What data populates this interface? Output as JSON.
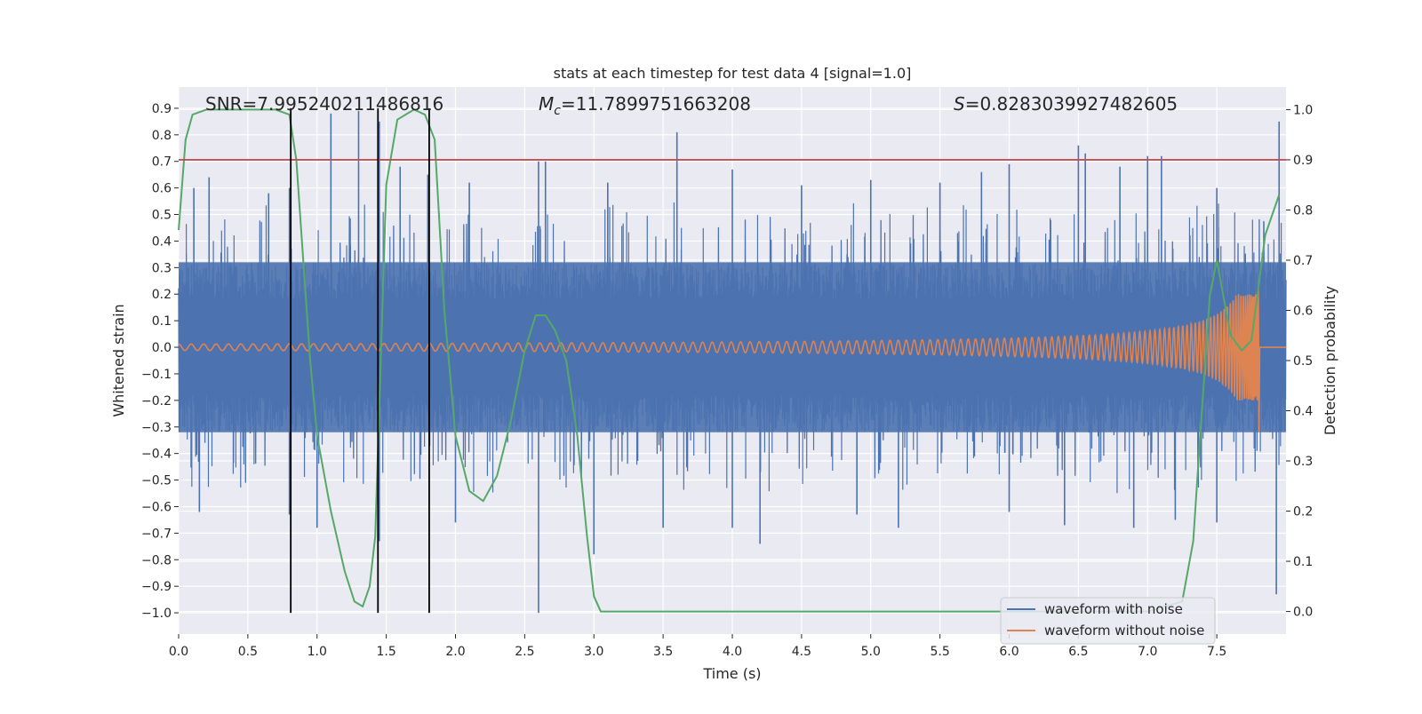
{
  "chart_data": {
    "type": "line",
    "title": "stats at each timestep for test data 4 [signal=1.0]",
    "xlabel": "Time (s)",
    "ylabel": "Whitened strain",
    "ylabel_right": "Detection probability",
    "xlim": [
      0.0,
      8.0
    ],
    "ylim": [
      -1.08,
      0.98
    ],
    "ylim_right": [
      -0.045,
      1.045
    ],
    "xticks": [
      0.0,
      0.5,
      1.0,
      1.5,
      2.0,
      2.5,
      3.0,
      3.5,
      4.0,
      4.5,
      5.0,
      5.5,
      6.0,
      6.5,
      7.0,
      7.5
    ],
    "xtick_labels": [
      "0.0",
      "0.5",
      "1.0",
      "1.5",
      "2.0",
      "2.5",
      "3.0",
      "3.5",
      "4.0",
      "4.5",
      "5.0",
      "5.5",
      "6.0",
      "6.5",
      "7.0",
      "7.5"
    ],
    "yticks": [
      -1.0,
      -0.9,
      -0.8,
      -0.7,
      -0.6,
      -0.5,
      -0.4,
      -0.3,
      -0.2,
      -0.1,
      0.0,
      0.1,
      0.2,
      0.3,
      0.4,
      0.5,
      0.6,
      0.7,
      0.8,
      0.9
    ],
    "ytick_labels": [
      "−1.0",
      "−0.9",
      "−0.8",
      "−0.7",
      "−0.6",
      "−0.5",
      "−0.4",
      "−0.3",
      "−0.2",
      "−0.1",
      "0.0",
      "0.1",
      "0.2",
      "0.3",
      "0.4",
      "0.5",
      "0.6",
      "0.7",
      "0.8",
      "0.9"
    ],
    "yticks_right": [
      0.0,
      0.1,
      0.2,
      0.3,
      0.4,
      0.5,
      0.6,
      0.7,
      0.8,
      0.9,
      1.0
    ],
    "ytick_labels_right": [
      "0.0",
      "0.1",
      "0.2",
      "0.3",
      "0.4",
      "0.5",
      "0.6",
      "0.7",
      "0.8",
      "0.9",
      "1.0"
    ],
    "annotations": {
      "snr": "SNR=7.995240211486816",
      "mc_symbol": "M",
      "mc_sub": "c",
      "mc_value": "=11.7899751663208",
      "s_symbol": "S",
      "s_value": "=0.8283039927482605"
    },
    "threshold": {
      "y_right": 0.9,
      "color": "#c44e52"
    },
    "vlines": {
      "x": [
        0.81,
        1.44,
        1.81
      ],
      "y_range": [
        -1.0,
        0.9
      ],
      "color": "#000000"
    },
    "series": [
      {
        "name": "waveform with noise",
        "color": "#4c72b0",
        "axis": "left",
        "envelope": {
          "x": [
            0.0,
            8.0
          ],
          "upper": 0.32,
          "lower": -0.32
        },
        "spikes": [
          [
            0.11,
            0.6
          ],
          [
            0.22,
            0.64
          ],
          [
            0.65,
            0.58
          ],
          [
            0.8,
            0.6
          ],
          [
            1.1,
            0.88
          ],
          [
            1.3,
            0.89
          ],
          [
            1.45,
            0.85
          ],
          [
            1.6,
            0.68
          ],
          [
            1.8,
            0.65
          ],
          [
            2.1,
            0.62
          ],
          [
            2.6,
            0.7
          ],
          [
            2.65,
            0.7
          ],
          [
            3.1,
            0.62
          ],
          [
            3.6,
            0.81
          ],
          [
            4.0,
            0.67
          ],
          [
            4.5,
            0.61
          ],
          [
            5.0,
            0.63
          ],
          [
            5.5,
            0.62
          ],
          [
            5.8,
            0.66
          ],
          [
            6.0,
            0.69
          ],
          [
            6.5,
            0.76
          ],
          [
            6.55,
            0.73
          ],
          [
            6.8,
            0.68
          ],
          [
            7.0,
            0.72
          ],
          [
            7.1,
            0.72
          ],
          [
            7.5,
            0.6
          ],
          [
            7.95,
            0.85
          ],
          [
            0.15,
            -0.62
          ],
          [
            0.8,
            -0.63
          ],
          [
            1.0,
            -0.68
          ],
          [
            1.45,
            -0.73
          ],
          [
            2.0,
            -0.66
          ],
          [
            2.6,
            -1.0
          ],
          [
            3.0,
            -0.78
          ],
          [
            3.5,
            -0.68
          ],
          [
            4.0,
            -0.68
          ],
          [
            4.2,
            -0.74
          ],
          [
            4.9,
            -0.63
          ],
          [
            5.2,
            -0.68
          ],
          [
            6.0,
            -0.62
          ],
          [
            6.4,
            -0.67
          ],
          [
            6.9,
            -0.68
          ],
          [
            7.2,
            -0.65
          ],
          [
            7.5,
            -0.66
          ],
          [
            7.93,
            -0.93
          ]
        ]
      },
      {
        "name": "waveform without noise",
        "color": "#dd8452",
        "axis": "left",
        "chirp": {
          "t_merger": 7.8,
          "base_amplitude": 0.012,
          "peak_amplitude": 0.23,
          "min_amplitude": -0.32
        }
      },
      {
        "name": "detection probability",
        "color": "#55a868",
        "axis": "right",
        "x": [
          0.0,
          0.05,
          0.1,
          0.2,
          0.3,
          0.5,
          0.7,
          0.8,
          0.85,
          0.9,
          0.95,
          1.0,
          1.1,
          1.2,
          1.27,
          1.33,
          1.38,
          1.42,
          1.46,
          1.5,
          1.58,
          1.7,
          1.78,
          1.85,
          1.92,
          2.0,
          2.1,
          2.2,
          2.3,
          2.4,
          2.5,
          2.58,
          2.65,
          2.72,
          2.8,
          2.88,
          2.95,
          3.0,
          3.05,
          3.3,
          4.0,
          5.0,
          6.0,
          6.5,
          7.0,
          7.25,
          7.33,
          7.38,
          7.45,
          7.5,
          7.6,
          7.68,
          7.75,
          7.85,
          7.95
        ],
        "y": [
          0.76,
          0.94,
          0.99,
          1.0,
          1.0,
          1.0,
          1.0,
          0.99,
          0.9,
          0.7,
          0.5,
          0.35,
          0.2,
          0.08,
          0.02,
          0.01,
          0.05,
          0.15,
          0.5,
          0.85,
          0.98,
          1.0,
          0.99,
          0.94,
          0.6,
          0.35,
          0.24,
          0.22,
          0.27,
          0.38,
          0.52,
          0.59,
          0.59,
          0.56,
          0.5,
          0.35,
          0.15,
          0.03,
          0.0,
          0.0,
          0.0,
          0.0,
          0.0,
          0.0,
          0.0,
          0.02,
          0.14,
          0.35,
          0.63,
          0.7,
          0.55,
          0.52,
          0.54,
          0.75,
          0.83
        ]
      }
    ],
    "legend": {
      "position": "lower-right",
      "entries": [
        {
          "label": "waveform with noise",
          "color": "#4c72b0"
        },
        {
          "label": "waveform without noise",
          "color": "#dd8452"
        }
      ]
    },
    "style": {
      "axes_bg": "#eaeaf2",
      "grid": "#ffffff"
    }
  }
}
